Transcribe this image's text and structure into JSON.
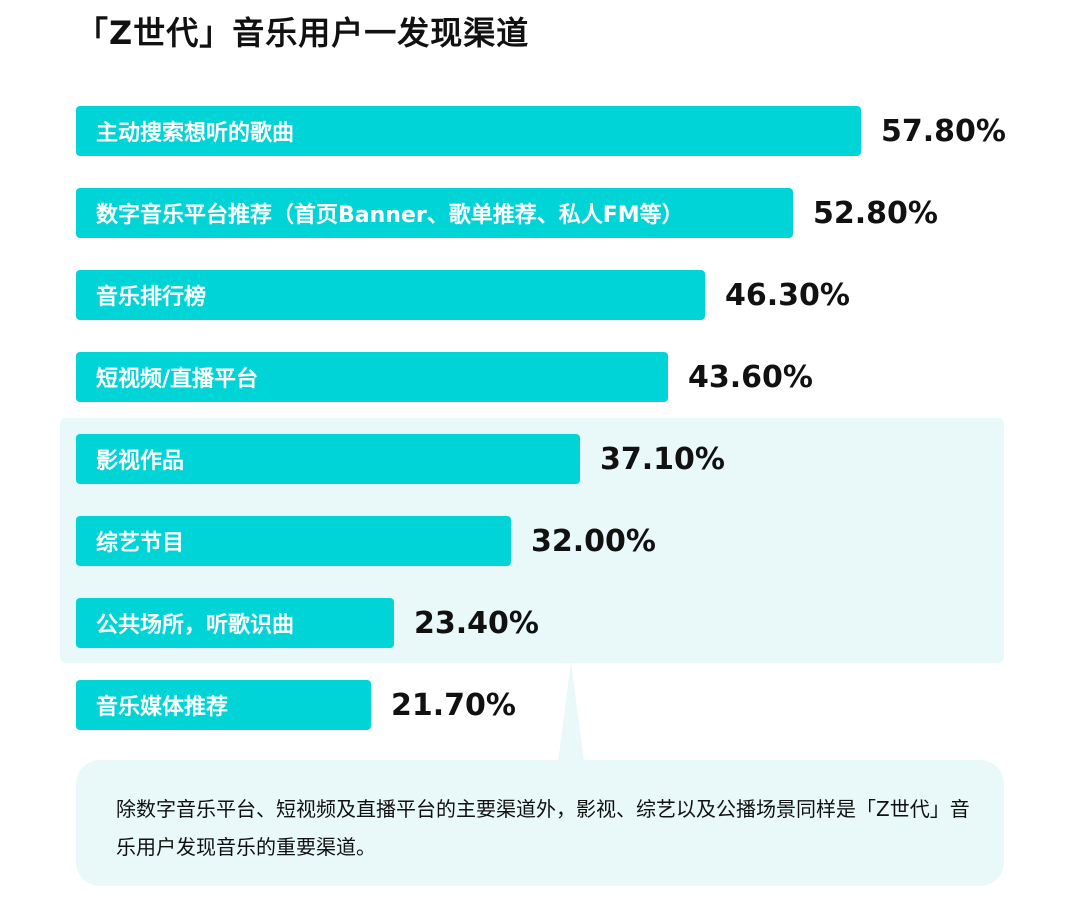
{
  "title": "「Z世代」音乐用户一发现渠道",
  "colors": {
    "bar": "#00d4d6",
    "panel": "#e9f8f8",
    "text": "#111111"
  },
  "note": "除数字音乐平台、短视频及直播平台的主要渠道外，影视、综艺以及公播场景同样是「Z世代」音乐用户发现音乐的重要渠道。",
  "chart_data": {
    "type": "bar",
    "orientation": "horizontal",
    "categories": [
      "主动搜索想听的歌曲",
      "数字音乐平台推荐（首页Banner、歌单推荐、私人FM等）",
      "音乐排行榜",
      "短视频/直播平台",
      "影视作品",
      "综艺节目",
      "公共场所，听歌识曲",
      "音乐媒体推荐"
    ],
    "values": [
      57.8,
      52.8,
      46.3,
      43.6,
      37.1,
      32.0,
      23.4,
      21.7
    ],
    "value_labels": [
      "57.80%",
      "52.80%",
      "46.30%",
      "43.60%",
      "37.10%",
      "32.00%",
      "23.40%",
      "21.70%"
    ],
    "title": "「Z世代」音乐用户一发现渠道",
    "xlabel": "",
    "ylabel": "",
    "highlighted_categories": [
      "影视作品",
      "综艺节目",
      "公共场所，听歌识曲"
    ]
  }
}
